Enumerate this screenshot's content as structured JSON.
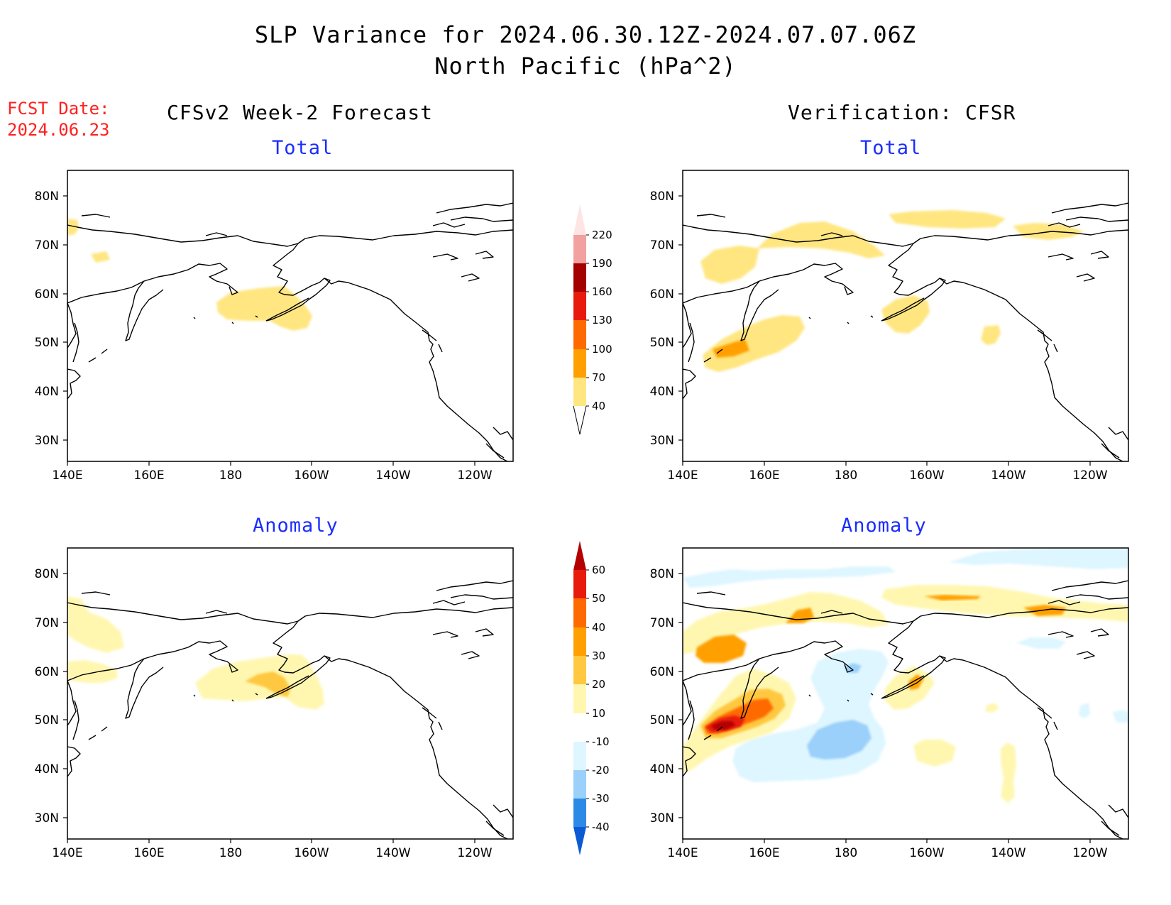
{
  "header": {
    "title_line1": "SLP Variance for 2024.06.30.12Z-2024.07.07.06Z",
    "title_line2": "North Pacific (hPa^2)",
    "fcst_label": "FCST Date:",
    "fcst_date": "2024.06.23"
  },
  "columns": {
    "left": "CFSv2 Week-2 Forecast",
    "right": "Verification: CFSR"
  },
  "panels": {
    "top_left": "Total",
    "top_right": "Total",
    "bottom_left": "Anomaly",
    "bottom_right": "Anomaly"
  },
  "axes": {
    "lat_ticks": [
      "80N",
      "70N",
      "60N",
      "50N",
      "40N",
      "30N"
    ],
    "lon_ticks": [
      "140E",
      "160E",
      "180",
      "160W",
      "140W",
      "120W"
    ]
  },
  "colorbars": {
    "total": {
      "labels": [
        "40",
        "70",
        "100",
        "130",
        "160",
        "190",
        "220"
      ],
      "colors": [
        "#ffe680",
        "#ffa000",
        "#ff6a00",
        "#e81a0c",
        "#a50000",
        "#f2a0a0",
        "#ffe4e4"
      ]
    },
    "anomaly": {
      "labels": [
        "-40",
        "-30",
        "-20",
        "-10",
        "10",
        "20",
        "30",
        "40",
        "50",
        "60"
      ],
      "colors": [
        "#0a5ad4",
        "#2a8ae6",
        "#9ad0fa",
        "#def6ff",
        "#ffffff",
        "#fff7b0",
        "#ffc840",
        "#ffa000",
        "#ff6a00",
        "#e81a0c",
        "#b40000"
      ]
    }
  },
  "colors": {
    "pale_yellow": "#fff7b0",
    "yellow": "#ffe680",
    "orange": "#ffa000",
    "dark_orange": "#ff6a00",
    "red": "#e81a0c",
    "dark_red": "#b40000",
    "light_blue": "#def6ff",
    "blue": "#9ad0fa",
    "fcst_text": "#ff2020",
    "panel_title": "#1a2cff"
  }
}
